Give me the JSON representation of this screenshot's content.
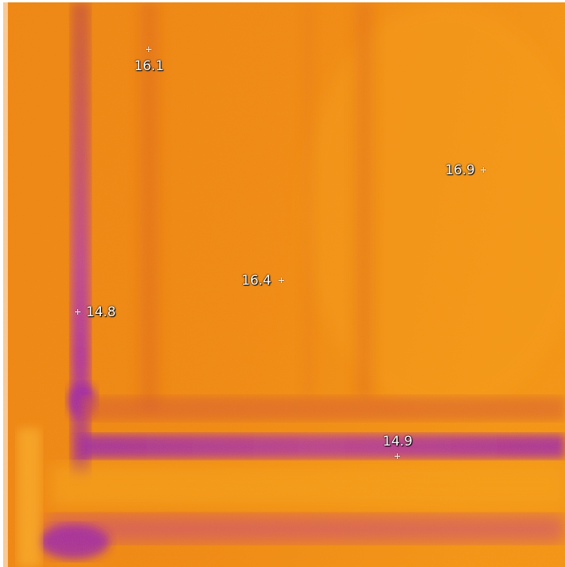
{
  "image": {
    "type": "thermal-infrared",
    "palette": [
      "#f5a01c",
      "#ee8a10",
      "#e67210",
      "#c24a40",
      "#a02aa0"
    ],
    "measurement_points": [
      {
        "label": "16.1"
      },
      {
        "label": "16.9"
      },
      {
        "label": "16.4"
      },
      {
        "label": "14.8"
      },
      {
        "label": "14.9"
      }
    ]
  }
}
